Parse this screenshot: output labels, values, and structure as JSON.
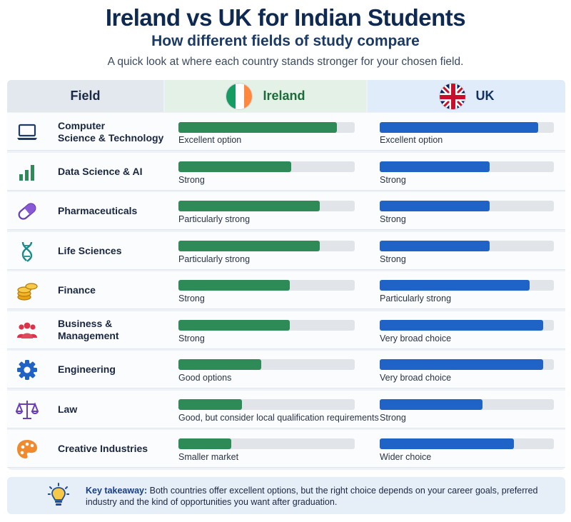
{
  "title": "Ireland vs UK for Indian Students",
  "subtitle": "How different fields of study compare",
  "intro": "A quick look at where each country stands stronger for your chosen field.",
  "headers": {
    "field": "Field",
    "ireland": "Ireland",
    "uk": "UK"
  },
  "colors": {
    "ireland": "#2e8b57",
    "uk": "#1f63c6",
    "track": "#e1e5ea"
  },
  "chart_data": {
    "type": "bar",
    "categories": [
      "Computer Science & Technology",
      "Data Science & AI",
      "Pharmaceuticals",
      "Life Sciences",
      "Finance",
      "Business & Management",
      "Engineering",
      "Law",
      "Creative Industries"
    ],
    "series": [
      {
        "name": "Ireland",
        "values": [
          0.9,
          0.64,
          0.8,
          0.8,
          0.63,
          0.63,
          0.47,
          0.36,
          0.3
        ]
      },
      {
        "name": "UK",
        "values": [
          0.91,
          0.63,
          0.63,
          0.63,
          0.86,
          0.94,
          0.94,
          0.59,
          0.77
        ]
      }
    ],
    "ylim": [
      0,
      1
    ]
  },
  "rows": [
    {
      "field": "Computer\nScience & Technology",
      "icon": "laptop-icon",
      "ireland_text": "Excellent option",
      "uk_text": "Excellent option"
    },
    {
      "field": "Data Science & AI",
      "icon": "bar-chart-icon",
      "ireland_text": "Strong",
      "uk_text": "Strong"
    },
    {
      "field": "Pharmaceuticals",
      "icon": "pill-icon",
      "ireland_text": "Particularly strong",
      "uk_text": "Strong"
    },
    {
      "field": "Life Sciences",
      "icon": "dna-icon",
      "ireland_text": "Particularly strong",
      "uk_text": "Strong"
    },
    {
      "field": "Finance",
      "icon": "coins-icon",
      "ireland_text": "Strong",
      "uk_text": "Particularly strong"
    },
    {
      "field": "Business & Management",
      "icon": "people-icon",
      "ireland_text": "Strong",
      "uk_text": "Very broad choice"
    },
    {
      "field": "Engineering",
      "icon": "gear-icon",
      "ireland_text": "Good options",
      "uk_text": "Very broad choice"
    },
    {
      "field": "Law",
      "icon": "scales-icon",
      "ireland_text": "Good, but consider local qualification requirements",
      "uk_text": "Strong"
    },
    {
      "field": "Creative Industries",
      "icon": "palette-icon",
      "ireland_text": "Smaller market",
      "uk_text": "Wider choice"
    }
  ],
  "takeaway": {
    "label": "Key takeaway:",
    "text": " Both countries offer excellent options, but the right choice depends on your career goals, preferred industry and the kind of opportunities you want after graduation."
  }
}
